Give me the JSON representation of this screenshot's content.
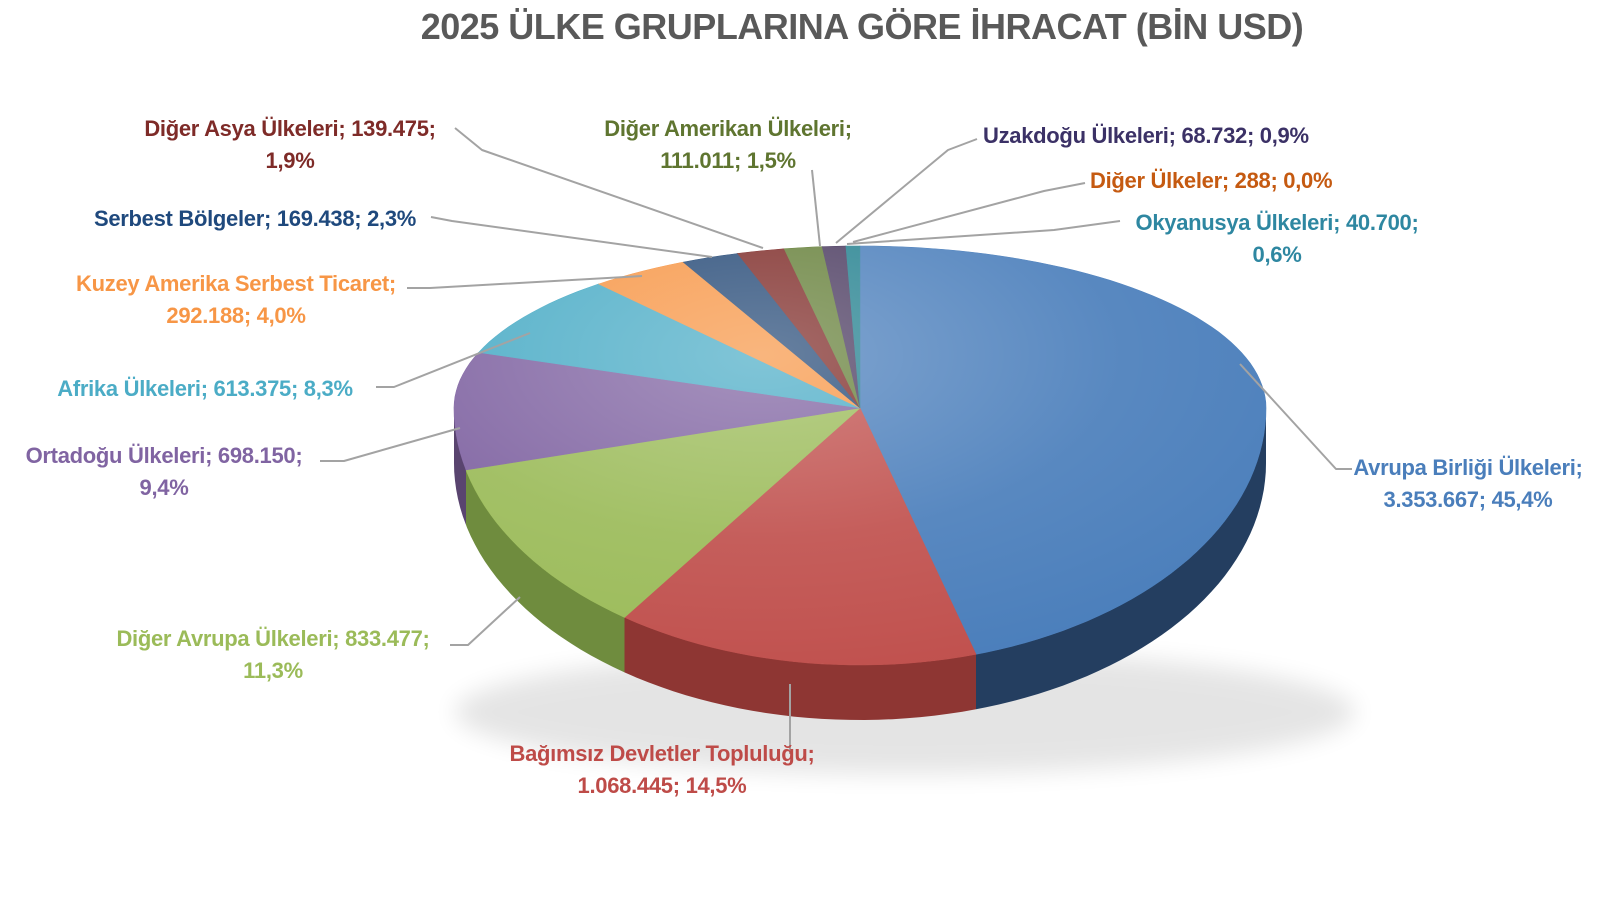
{
  "title": "2025 ÜLKE GRUPLARINA GÖRE İHRACAT (BİN USD)",
  "colors": {
    "background": "#FFFFFF",
    "title_text": "#595959",
    "leader_line": "#A3A3A3",
    "shadow": "#000000"
  },
  "chart_data": {
    "type": "pie",
    "style": "3d",
    "title": "2025 ÜLKE GRUPLARINA GÖRE İHRACAT (BİN USD)",
    "unit": "BİN USD",
    "start_angle_deg": 0,
    "direction": "clockwise",
    "label_format": "name; value; percent",
    "slices": [
      {
        "key": "avrupa-birligi",
        "name": "Avrupa Birliği Ülkeleri",
        "value": 3353667,
        "value_display": "3.353.667",
        "percent": 45.4,
        "percent_display": "45,4%",
        "color": "#4A7EBB",
        "side_color": "#243E60",
        "label_color": "#4A7EBB",
        "label_lines": [
          "Avrupa Birliği Ülkeleri;",
          "3.353.667; 45,4%"
        ]
      },
      {
        "key": "bagimsiz-devletler",
        "name": "Bağımsız Devletler Topluluğu",
        "value": 1068445,
        "value_display": "1.068.445",
        "percent": 14.5,
        "percent_display": "14,5%",
        "color": "#C0504D",
        "side_color": "#8E3633",
        "label_color": "#BE4B48",
        "label_lines": [
          "Bağımsız Devletler Topluluğu;",
          "1.068.445; 14,5%"
        ]
      },
      {
        "key": "diger-avrupa",
        "name": "Diğer Avrupa Ülkeleri",
        "value": 833477,
        "value_display": "833.477",
        "percent": 11.3,
        "percent_display": "11,3%",
        "color": "#9BBB59",
        "side_color": "#6F8C3E",
        "label_color": "#9BBB59",
        "label_lines": [
          "Diğer Avrupa Ülkeleri; 833.477;",
          "11,3%"
        ]
      },
      {
        "key": "ortadogu",
        "name": "Ortadoğu Ülkeleri",
        "value": 698150,
        "value_display": "698.150",
        "percent": 9.4,
        "percent_display": "9,4%",
        "color": "#8064A2",
        "side_color": "#59446F",
        "label_color": "#8064A2",
        "label_lines": [
          "Ortadoğu Ülkeleri; 698.150;",
          "9,4%"
        ]
      },
      {
        "key": "afrika",
        "name": "Afrika Ülkeleri",
        "value": 613375,
        "value_display": "613.375",
        "percent": 8.3,
        "percent_display": "8,3%",
        "color": "#4BACC6",
        "side_color": "#327A8C",
        "label_color": "#4BACC6",
        "label_lines": [
          "Afrika Ülkeleri; 613.375; 8,3%"
        ]
      },
      {
        "key": "kuzey-amerika",
        "name": "Kuzey Amerika Serbest Ticaret",
        "value": 292188,
        "value_display": "292.188",
        "percent": 4.0,
        "percent_display": "4,0%",
        "color": "#F79646",
        "side_color": "#B56C26",
        "label_color": "#F79646",
        "label_lines": [
          "Kuzey Amerika Serbest Ticaret;",
          "292.188; 4,0%"
        ]
      },
      {
        "key": "serbest-bolgeler",
        "name": "Serbest Bölgeler",
        "value": 169438,
        "value_display": "169.438",
        "percent": 2.3,
        "percent_display": "2,3%",
        "color": "#264A77",
        "side_color": "#1B355A",
        "label_color": "#1F497D",
        "label_lines": [
          "Serbest Bölgeler; 169.438; 2,3%"
        ]
      },
      {
        "key": "diger-asya",
        "name": "Diğer Asya Ülkeleri",
        "value": 139475,
        "value_display": "139.475",
        "percent": 1.9,
        "percent_display": "1,9%",
        "color": "#7E2B28",
        "side_color": "#5A1F1D",
        "label_color": "#7E2B28",
        "label_lines": [
          "Diğer Asya Ülkeleri; 139.475;",
          "1,9%"
        ]
      },
      {
        "key": "diger-amerikan",
        "name": "Diğer Amerikan Ülkeleri",
        "value": 111011,
        "value_display": "111.011",
        "percent": 1.5,
        "percent_display": "1,5%",
        "color": "#66803A",
        "side_color": "#49602A",
        "label_color": "#5F7530",
        "label_lines": [
          "Diğer Amerikan Ülkeleri;",
          "111.011; 1,5%"
        ]
      },
      {
        "key": "uzakdogu",
        "name": "Uzakdoğu Ülkeleri",
        "value": 68732,
        "value_display": "68.732",
        "percent": 0.9,
        "percent_display": "0,9%",
        "color": "#4B3B60",
        "side_color": "#352A45",
        "label_color": "#3B3166",
        "label_lines": [
          "Uzakdoğu Ülkeleri; 68.732; 0,9%"
        ]
      },
      {
        "key": "okyanusya",
        "name": "Okyanusya Ülkeleri",
        "value": 40700,
        "value_display": "40.700",
        "percent": 0.6,
        "percent_display": "0,6%",
        "color": "#24818F",
        "side_color": "#1A5F6A",
        "label_color": "#2E87A1",
        "label_lines": [
          "Okyanusya Ülkeleri; 40.700;",
          "0,6%"
        ]
      },
      {
        "key": "diger-ulkeler",
        "name": "Diğer Ülkeler",
        "value": 288,
        "value_display": "288",
        "percent": 0.0,
        "percent_display": "0,0%",
        "color": "#C55A11",
        "side_color": "#8E420C",
        "label_color": "#C55A11",
        "label_lines": [
          "Diğer Ülkeler; 288; 0,0%"
        ]
      }
    ]
  }
}
